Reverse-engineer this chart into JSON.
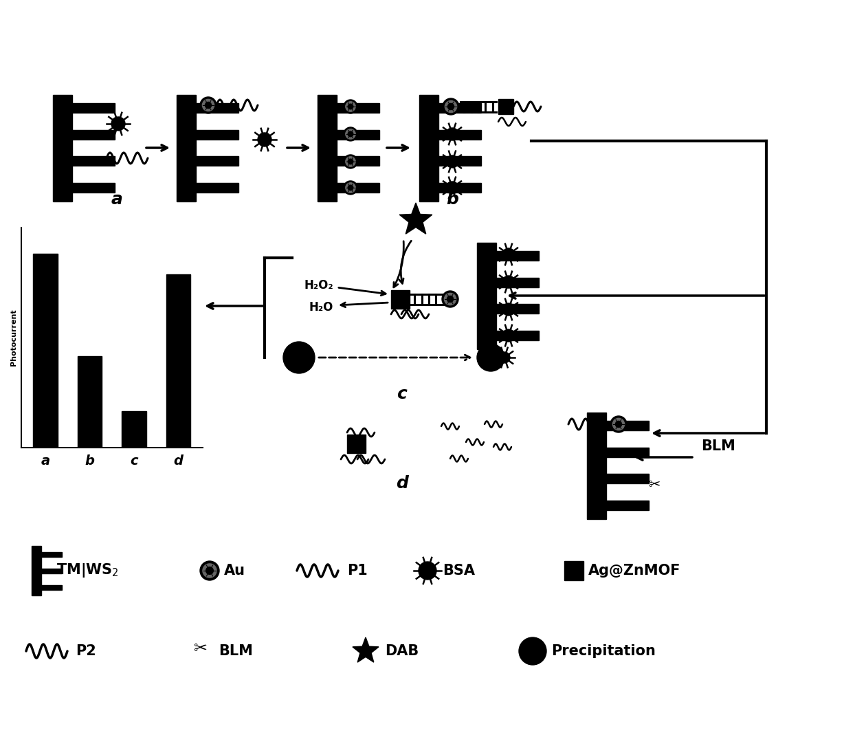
{
  "bg_color": "#ffffff",
  "bar_values": [
    0.95,
    0.45,
    0.18,
    0.85
  ],
  "bar_labels": [
    "a",
    "b",
    "c",
    "d"
  ],
  "bar_color": "#000000",
  "ylabel": "Photocurrent",
  "h2o2_label": "H₂O₂",
  "h2o_label": "H₂O",
  "blm_label": "BLM",
  "figw": 12.28,
  "figh": 10.85,
  "dpi": 100
}
